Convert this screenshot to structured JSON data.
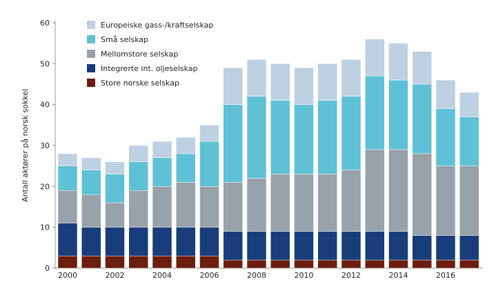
{
  "chart_data": {
    "type": "bar",
    "stacked": true,
    "title": "",
    "xlabel": "",
    "ylabel": "Antall aktører på norsk sokkel",
    "ylim": [
      0,
      60
    ],
    "yticks": [
      0,
      10,
      20,
      30,
      40,
      50,
      60
    ],
    "xtick_labels": [
      "2000",
      "2002",
      "2004",
      "2006",
      "2008",
      "2010",
      "2012",
      "2014",
      "2016"
    ],
    "categories": [
      "2000",
      "2001",
      "2002",
      "2003",
      "2004",
      "2005",
      "2006",
      "2007",
      "2008",
      "2009",
      "2010",
      "2011",
      "2012",
      "2013",
      "2014",
      "2015",
      "2016",
      "2017"
    ],
    "grid": false,
    "legend_placement": "top-left",
    "series": [
      {
        "name": "Store norske selskap",
        "color": "#6b1d0e",
        "values": [
          3,
          3,
          3,
          3,
          3,
          3,
          3,
          2,
          2,
          2,
          2,
          2,
          2,
          2,
          2,
          2,
          2,
          2
        ]
      },
      {
        "name": "Integrerte int. oljeselskap",
        "color": "#183d7a",
        "values": [
          8,
          7,
          7,
          7,
          7,
          7,
          7,
          7,
          7,
          7,
          7,
          7,
          7,
          7,
          7,
          6,
          6,
          6
        ]
      },
      {
        "name": "Mellomstore selskap",
        "color": "#98a2ab",
        "values": [
          8,
          8,
          6,
          9,
          10,
          11,
          10,
          12,
          13,
          14,
          14,
          14,
          15,
          20,
          20,
          20,
          17,
          17
        ]
      },
      {
        "name": "Små selskap",
        "color": "#5fc1d6",
        "values": [
          6,
          6,
          7,
          7,
          7,
          7,
          11,
          19,
          20,
          18,
          17,
          18,
          18,
          18,
          17,
          17,
          14,
          12
        ]
      },
      {
        "name": "Europeiske gass-/kraftselskap",
        "color": "#bed1e2",
        "values": [
          3,
          3,
          3,
          4,
          4,
          4,
          4,
          9,
          9,
          9,
          9,
          9,
          9,
          9,
          9,
          8,
          7,
          6
        ]
      }
    ]
  }
}
